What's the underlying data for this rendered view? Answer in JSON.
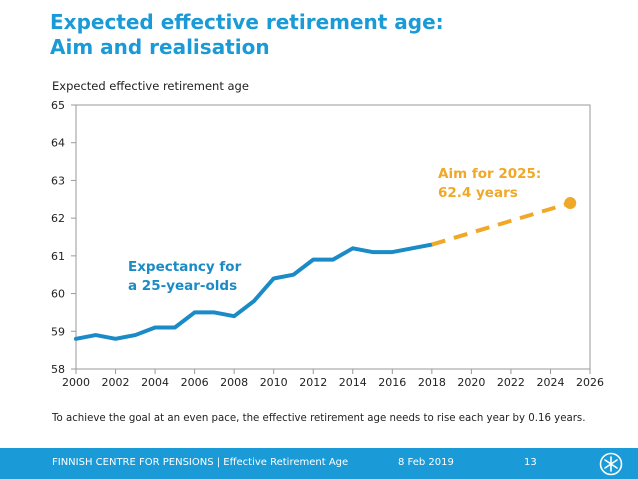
{
  "slide": {
    "title_line1": "Expected effective retirement age:",
    "title_line2": "Aim and realisation",
    "note": "To achieve the goal at an even pace, the effective retirement age needs to rise each year by 0.16 years."
  },
  "footer": {
    "org": "FINNISH CENTRE FOR PENSIONS | Effective Retirement Age",
    "date": "8 Feb 2019",
    "page": "13",
    "color": "#1a9ad6"
  },
  "chart_data": {
    "type": "line",
    "title": "Expected effective retirement age",
    "xlabel": "",
    "ylabel": "",
    "xlim": [
      2000,
      2026
    ],
    "ylim": [
      58,
      65
    ],
    "x_ticks": [
      "2000",
      "2002",
      "2004",
      "2006",
      "2008",
      "2010",
      "2012",
      "2014",
      "2016",
      "2018",
      "2020",
      "2022",
      "2024",
      "2026"
    ],
    "y_ticks": [
      "58",
      "59",
      "60",
      "61",
      "62",
      "63",
      "64",
      "65"
    ],
    "grid": false,
    "series": [
      {
        "name": "Expectancy for a 25-year-olds",
        "color": "#1a8bc6",
        "style": "solid",
        "x": [
          2000,
          2001,
          2002,
          2003,
          2004,
          2005,
          2006,
          2007,
          2008,
          2009,
          2010,
          2011,
          2012,
          2013,
          2014,
          2015,
          2016,
          2017,
          2018
        ],
        "y": [
          58.8,
          58.9,
          58.8,
          58.9,
          59.1,
          59.1,
          59.5,
          59.5,
          59.4,
          59.8,
          60.4,
          60.5,
          60.9,
          60.9,
          61.2,
          61.1,
          61.1,
          61.2,
          61.3
        ]
      },
      {
        "name": "Aim for 2025: 62.4 years",
        "color": "#f0a828",
        "style": "dashed",
        "x": [
          2018,
          2025
        ],
        "y": [
          61.3,
          62.4
        ]
      }
    ],
    "annotations": [
      {
        "id": "expectancy",
        "line1": "Expectancy for",
        "line2": "a 25-year-olds",
        "color": "#1a8bc6"
      },
      {
        "id": "aim",
        "line1": "Aim for 2025:",
        "line2": "62.4 years",
        "color": "#f0a828"
      }
    ]
  }
}
